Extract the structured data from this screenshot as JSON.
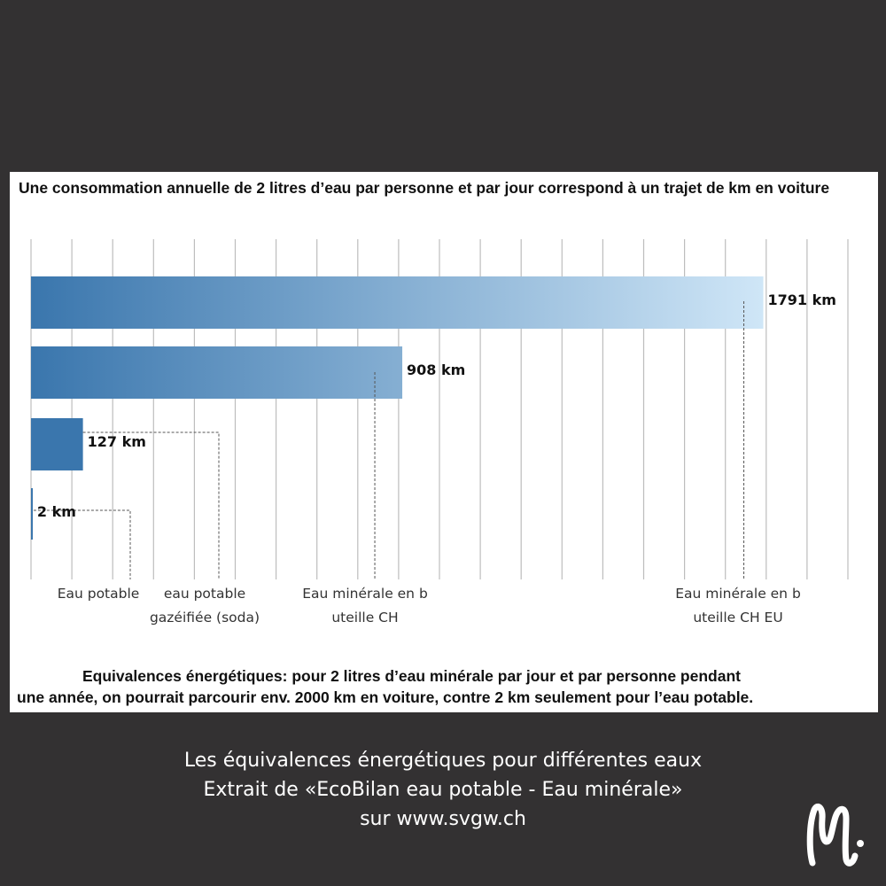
{
  "chart_data": {
    "type": "bar",
    "orientation": "horizontal",
    "title": "Une consommation annuelle de 2 litres d’eau par personne et par jour correspond à un trajet de  km en voiture",
    "categories": [
      "Eau minérale en bouteille CH EU",
      "Eau minérale en bouteille CH",
      "eau potable gazéifiée (soda)",
      "Eau potable"
    ],
    "values": [
      1791,
      908,
      127,
      2
    ],
    "value_labels": [
      "1791 km",
      "908 km",
      "127 km",
      "2 km"
    ],
    "unit": "km",
    "xlim": [
      0,
      2000
    ],
    "grid": true,
    "colors": {
      "bar_start": "#3a76ad",
      "bar_end": "#cfe6f7"
    }
  },
  "note": {
    "line1": "Equivalences énergétiques: pour 2 litres d’eau minérale par jour et par personne pendant",
    "line2": "une année, on pourrait parcourir env. 2000 km en voiture, contre 2 km seulement pour l’eau potable."
  },
  "caption": {
    "line1": "Les équivalences énergétiques pour différentes eaux",
    "line2": "Extrait de «EcoBilan eau potable - Eau minérale»",
    "line3": "sur www.svgw.ch"
  },
  "logo_text": "M."
}
